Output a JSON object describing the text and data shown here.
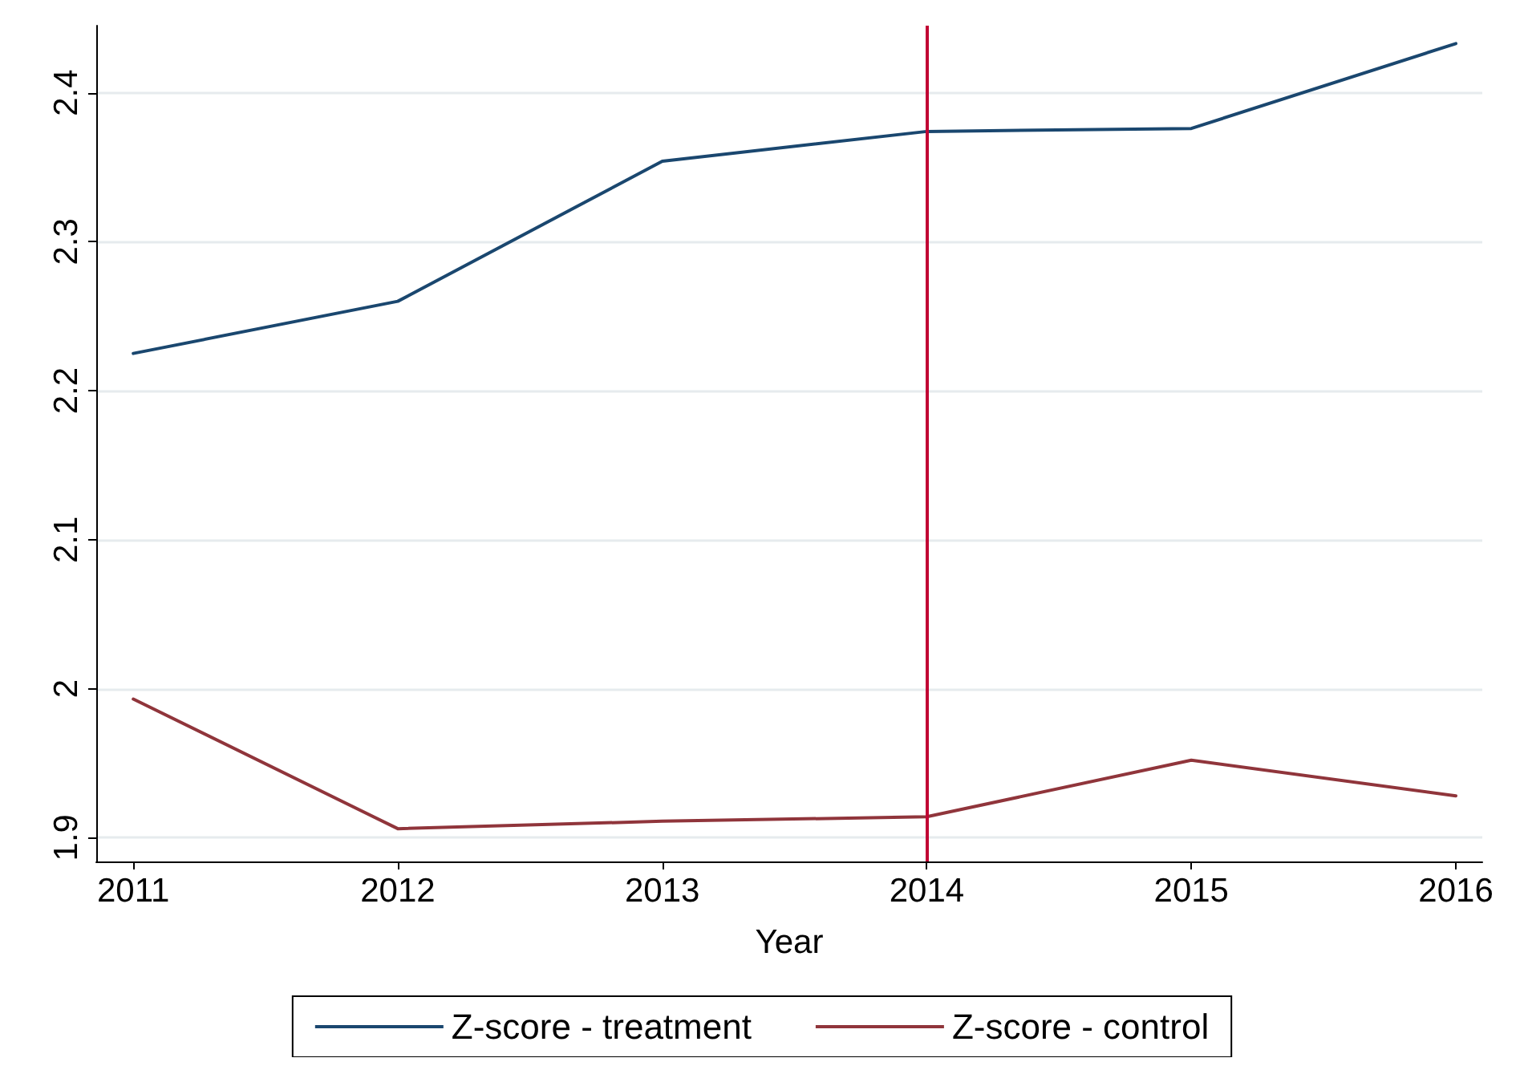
{
  "chart_data": {
    "type": "line",
    "xlabel": "Year",
    "x": [
      2011,
      2012,
      2013,
      2014,
      2015,
      2016
    ],
    "series": [
      {
        "name": "Z-score - treatment",
        "color": "#1a476f",
        "values": [
          2.225,
          2.26,
          2.354,
          2.374,
          2.376,
          2.433
        ]
      },
      {
        "name": "Z-score - control",
        "color": "#90353b",
        "values": [
          1.993,
          1.906,
          1.911,
          1.914,
          1.952,
          1.928
        ]
      }
    ],
    "xlim": [
      2010.86,
      2016.1
    ],
    "xticks": [
      2011,
      2012,
      2013,
      2014,
      2015,
      2016
    ],
    "ylim": [
      1.884,
      2.445
    ],
    "yticks": [
      1.9,
      2,
      2.1,
      2.2,
      2.3,
      2.4
    ],
    "ref_lines": [
      {
        "axis": "x",
        "value": 2014,
        "color": "#c10534"
      }
    ],
    "grid": "y",
    "legend": "bottom",
    "marker": "none",
    "line_style": "solid"
  }
}
